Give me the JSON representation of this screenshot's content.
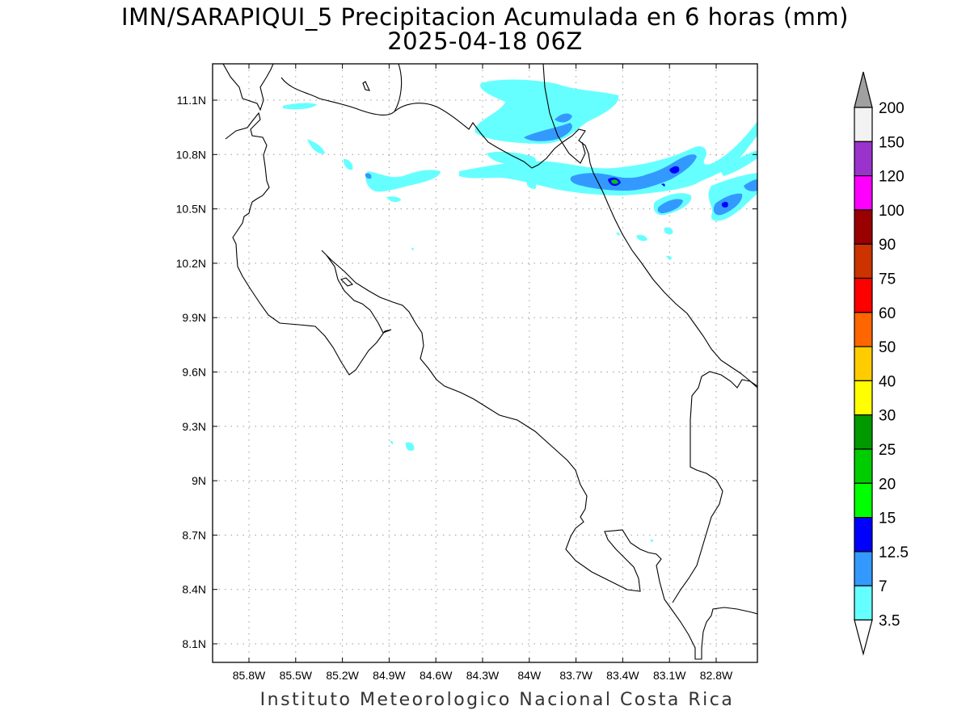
{
  "header": {
    "title": "IMN/SARAPIQUI_5 Precipitacion Acumulada en 6 horas (mm)",
    "subtitle": "2025-04-18 06Z"
  },
  "footer": {
    "credit": "Instituto Meteorologico Nacional Costa Rica"
  },
  "map": {
    "lat_ticks": [
      "11.1N",
      "10.8N",
      "10.5N",
      "10.2N",
      "9.9N",
      "9.6N",
      "9.3N",
      "9N",
      "8.7N",
      "8.4N",
      "8.1N"
    ],
    "lon_ticks": [
      "85.8W",
      "85.5W",
      "85.2W",
      "84.9W",
      "84.6W",
      "84.3W",
      "84W",
      "83.7W",
      "83.4W",
      "83.1W",
      "82.8W"
    ],
    "grid": true,
    "border_color": "#000000"
  },
  "colorbar": {
    "levels": [
      "200",
      "150",
      "120",
      "100",
      "90",
      "75",
      "60",
      "50",
      "40",
      "30",
      "25",
      "20",
      "15",
      "12.5",
      "7",
      "3.5"
    ],
    "colors": [
      "#f2f2f2",
      "#9933cc",
      "#ff00ff",
      "#990000",
      "#cc3300",
      "#ff0000",
      "#ff6600",
      "#ffcc00",
      "#ffff00",
      "#009900",
      "#00cc00",
      "#00ff00",
      "#0000ff",
      "#3399ff",
      "#66ffff"
    ],
    "top_arrow_color": "#a0a0a0",
    "bottom_arrow_color": "#ffffff"
  },
  "precipitation_colors": {
    "light": "#66ffff",
    "moderate": "#3399ff",
    "heavy": "#0000ff",
    "peak": "#00cc00"
  }
}
